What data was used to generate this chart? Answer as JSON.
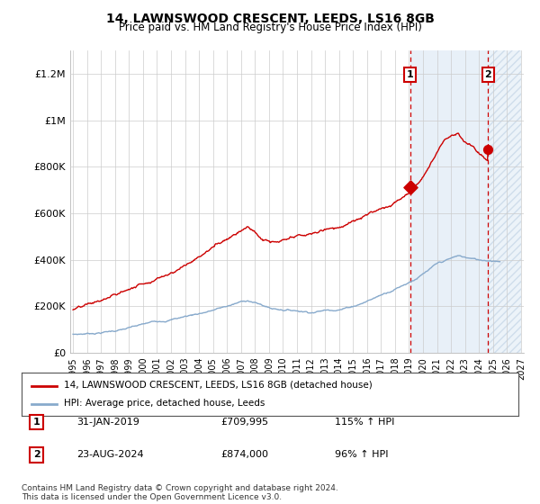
{
  "title": "14, LAWNSWOOD CRESCENT, LEEDS, LS16 8GB",
  "subtitle": "Price paid vs. HM Land Registry's House Price Index (HPI)",
  "ylim": [
    0,
    1300000
  ],
  "yticks": [
    0,
    200000,
    400000,
    600000,
    800000,
    1000000,
    1200000
  ],
  "ytick_labels": [
    "£0",
    "£200K",
    "£400K",
    "£600K",
    "£800K",
    "£1M",
    "£1.2M"
  ],
  "x_start_year": 1995,
  "x_end_year": 2027,
  "xtick_years": [
    1995,
    1996,
    1997,
    1998,
    1999,
    2000,
    2001,
    2002,
    2003,
    2004,
    2005,
    2006,
    2007,
    2008,
    2009,
    2010,
    2011,
    2012,
    2013,
    2014,
    2015,
    2016,
    2017,
    2018,
    2019,
    2020,
    2021,
    2022,
    2023,
    2024,
    2025,
    2026,
    2027
  ],
  "property_color": "#cc0000",
  "hpi_color": "#88aacc",
  "point1_x": 2019.08,
  "point1_y": 709995,
  "point2_x": 2024.65,
  "point2_y": 874000,
  "legend_property": "14, LAWNSWOOD CRESCENT, LEEDS, LS16 8GB (detached house)",
  "legend_hpi": "HPI: Average price, detached house, Leeds",
  "point1_date": "31-JAN-2019",
  "point1_price": "£709,995",
  "point1_hpi": "115% ↑ HPI",
  "point2_date": "23-AUG-2024",
  "point2_price": "£874,000",
  "point2_hpi": "96% ↑ HPI",
  "footnote": "Contains HM Land Registry data © Crown copyright and database right 2024.\nThis data is licensed under the Open Government Licence v3.0.",
  "background_color": "#ffffff",
  "grid_color": "#cccccc",
  "shade_color": "#e8f0f8",
  "hatch_color": "#c8d8e8"
}
